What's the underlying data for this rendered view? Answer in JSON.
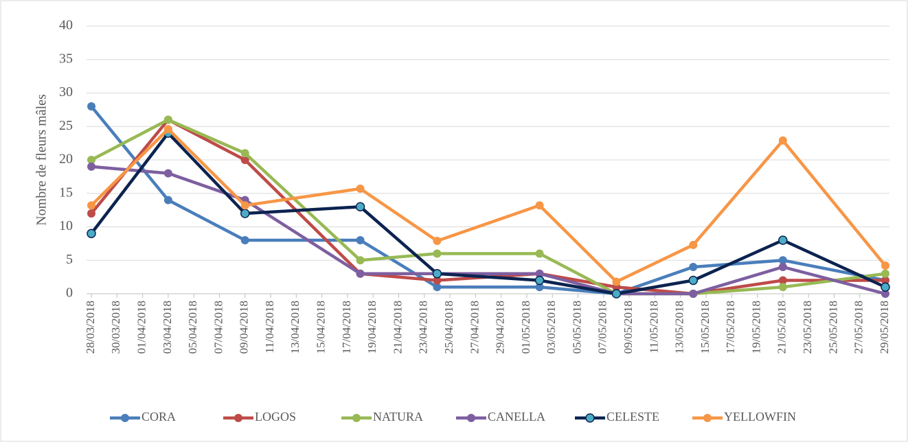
{
  "chart_data": {
    "type": "line",
    "y_label": "Nombre de fleurs mâles",
    "x": [
      "28/03/2018",
      "03/04/2018",
      "09/04/2018",
      "18/04/2018",
      "24/04/2018",
      "02/05/2018",
      "08/05/2018",
      "14/05/2018",
      "21/05/2018",
      "29/05/2018"
    ],
    "xlim": [
      "28/03/2018",
      "29/05/2018"
    ],
    "xticks": [
      "28/03/2018",
      "30/03/2018",
      "01/04/2018",
      "03/04/2018",
      "05/04/2018",
      "07/04/2018",
      "09/04/2018",
      "11/04/2018",
      "13/04/2018",
      "15/04/2018",
      "17/04/2018",
      "19/04/2018",
      "21/04/2018",
      "23/04/2018",
      "25/04/2018",
      "27/04/2018",
      "29/04/2018",
      "01/05/2018",
      "03/05/2018",
      "05/05/2018",
      "07/05/2018",
      "09/05/2018",
      "11/05/2018",
      "13/05/2018",
      "15/05/2018",
      "17/05/2018",
      "19/05/2018",
      "21/05/2018",
      "23/05/2018",
      "25/05/2018",
      "27/05/2018",
      "29/05/2018"
    ],
    "ylim": [
      0,
      40
    ],
    "yticks": [
      0,
      5,
      10,
      15,
      20,
      25,
      30,
      35,
      40
    ],
    "grid": true,
    "legend": "bottom",
    "series": [
      {
        "name": "CORA",
        "color": "#4a7ebb",
        "values": [
          28,
          14,
          8,
          8,
          1,
          1,
          0,
          4,
          5,
          2
        ]
      },
      {
        "name": "LOGOS",
        "color": "#be4b48",
        "values": [
          12,
          26,
          20,
          3,
          2,
          3,
          1,
          0,
          2,
          2
        ]
      },
      {
        "name": "NATURA",
        "color": "#98b954",
        "values": [
          20,
          26,
          21,
          5,
          6,
          6,
          0,
          0,
          1,
          3
        ]
      },
      {
        "name": "CANELLA",
        "color": "#7d5fa0",
        "values": [
          19,
          18,
          14,
          3,
          3,
          3,
          0,
          0,
          4,
          0
        ]
      },
      {
        "name": "CELESTE",
        "color": "#0c2350",
        "marker_color": "#4bacc6",
        "values": [
          9,
          24,
          12,
          13,
          3,
          2,
          0,
          2,
          8,
          1
        ]
      },
      {
        "name": "YELLOWFIN",
        "color": "#f79646",
        "values": [
          13.2,
          24.6,
          13.2,
          15.7,
          7.9,
          13.2,
          1.8,
          7.3,
          22.9,
          4.2
        ]
      }
    ]
  }
}
